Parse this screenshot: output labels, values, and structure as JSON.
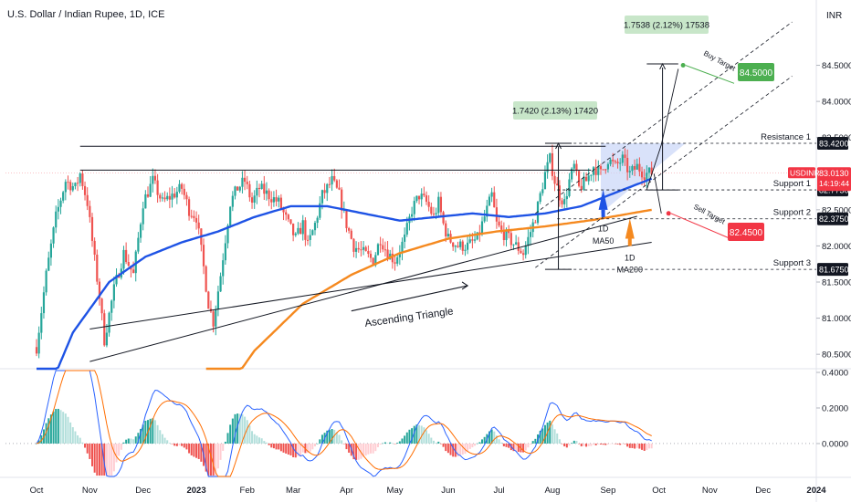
{
  "header": {
    "title": "U.S. Dollar / Indian Rupee, 1D, ICE",
    "currency": "INR"
  },
  "chart_data": {
    "type": "candlestick",
    "symbol": "USDINR",
    "current_price": "83.0130",
    "countdown": "14:19:44",
    "y_range": [
      80.3,
      85.05
    ],
    "y_ticks": [
      "84.5000",
      "84.0000",
      "83.5000",
      "82.5000",
      "82.0000",
      "81.5000",
      "81.0000",
      "80.5000"
    ],
    "x_ticks": [
      "Oct",
      "Nov",
      "Dec",
      "2023",
      "Feb",
      "Mar",
      "Apr",
      "May",
      "Jun",
      "Jul",
      "Aug",
      "Sep",
      "Oct",
      "Nov",
      "Dec",
      "2024"
    ],
    "x_tick_index": [
      0,
      22,
      44,
      66,
      87,
      106,
      128,
      148,
      170,
      191,
      213,
      236,
      257,
      278,
      300,
      322
    ],
    "candle_count": 255,
    "close_anchors": [
      [
        0,
        80.6
      ],
      [
        4,
        81.6
      ],
      [
        8,
        82.4
      ],
      [
        12,
        82.9
      ],
      [
        16,
        82.8
      ],
      [
        18,
        83.0
      ],
      [
        21,
        82.6
      ],
      [
        24,
        81.8
      ],
      [
        26,
        81.3
      ],
      [
        28,
        80.7
      ],
      [
        32,
        81.4
      ],
      [
        36,
        81.9
      ],
      [
        40,
        81.6
      ],
      [
        44,
        82.6
      ],
      [
        48,
        82.9
      ],
      [
        52,
        82.6
      ],
      [
        56,
        82.7
      ],
      [
        60,
        82.8
      ],
      [
        63,
        82.5
      ],
      [
        66,
        82.4
      ],
      [
        69,
        81.7
      ],
      [
        71,
        81.2
      ],
      [
        73,
        80.95
      ],
      [
        76,
        81.6
      ],
      [
        78,
        82.1
      ],
      [
        80,
        82.6
      ],
      [
        83,
        82.8
      ],
      [
        86,
        82.9
      ],
      [
        89,
        82.6
      ],
      [
        92,
        82.8
      ],
      [
        96,
        82.7
      ],
      [
        100,
        82.6
      ],
      [
        104,
        82.3
      ],
      [
        107,
        82.1
      ],
      [
        110,
        82.3
      ],
      [
        112,
        82.0
      ],
      [
        115,
        82.3
      ],
      [
        118,
        82.7
      ],
      [
        122,
        82.9
      ],
      [
        125,
        82.7
      ],
      [
        128,
        82.3
      ],
      [
        131,
        82.0
      ],
      [
        135,
        81.9
      ],
      [
        139,
        81.8
      ],
      [
        142,
        82.1
      ],
      [
        145,
        81.9
      ],
      [
        148,
        81.8
      ],
      [
        152,
        82.1
      ],
      [
        155,
        82.5
      ],
      [
        158,
        82.7
      ],
      [
        161,
        82.6
      ],
      [
        164,
        82.4
      ],
      [
        166,
        82.6
      ],
      [
        168,
        82.3
      ],
      [
        170,
        82.1
      ],
      [
        174,
        82.0
      ],
      [
        178,
        82.0
      ],
      [
        182,
        82.1
      ],
      [
        186,
        82.5
      ],
      [
        188,
        82.7
      ],
      [
        190,
        82.3
      ],
      [
        192,
        82.2
      ],
      [
        195,
        82.1
      ],
      [
        198,
        82.0
      ],
      [
        201,
        81.9
      ],
      [
        204,
        82.2
      ],
      [
        206,
        82.4
      ],
      [
        208,
        82.7
      ],
      [
        210,
        83.0
      ],
      [
        212,
        83.2
      ],
      [
        214,
        82.9
      ],
      [
        216,
        82.7
      ],
      [
        218,
        82.6
      ],
      [
        220,
        82.9
      ],
      [
        222,
        83.1
      ],
      [
        224,
        82.8
      ],
      [
        227,
        82.9
      ],
      [
        230,
        83.1
      ],
      [
        233,
        83.0
      ],
      [
        236,
        83.2
      ],
      [
        239,
        83.1
      ],
      [
        242,
        83.2
      ],
      [
        245,
        83.0
      ],
      [
        248,
        83.1
      ],
      [
        251,
        83.0
      ],
      [
        254,
        83.013
      ]
    ],
    "ma50": {
      "name": "1D MA50",
      "color": "#1e53e5",
      "anchors": [
        [
          0,
          79.6
        ],
        [
          15,
          80.8
        ],
        [
          30,
          81.5
        ],
        [
          45,
          81.85
        ],
        [
          60,
          82.05
        ],
        [
          75,
          82.2
        ],
        [
          90,
          82.4
        ],
        [
          105,
          82.55
        ],
        [
          120,
          82.55
        ],
        [
          135,
          82.45
        ],
        [
          150,
          82.35
        ],
        [
          165,
          82.4
        ],
        [
          180,
          82.45
        ],
        [
          195,
          82.4
        ],
        [
          210,
          82.45
        ],
        [
          225,
          82.55
        ],
        [
          240,
          82.75
        ],
        [
          254,
          82.93
        ]
      ]
    },
    "ma200": {
      "name": "1D MA200",
      "color": "#f5891f",
      "anchors": [
        [
          70,
          79.6
        ],
        [
          90,
          80.55
        ],
        [
          110,
          81.2
        ],
        [
          130,
          81.6
        ],
        [
          150,
          81.9
        ],
        [
          170,
          82.1
        ],
        [
          190,
          82.2
        ],
        [
          210,
          82.27
        ],
        [
          230,
          82.36
        ],
        [
          254,
          82.5
        ]
      ]
    },
    "levels": [
      {
        "name": "Resistance 1",
        "value": "83.4200",
        "color": "#131722"
      },
      {
        "name": "Support 1",
        "value": "82.7750",
        "color": "#131722"
      },
      {
        "name": "Support 2",
        "value": "82.3750",
        "color": "#131722"
      },
      {
        "name": "Support 3",
        "value": "81.6750",
        "color": "#131722"
      }
    ],
    "target_buy": {
      "label": "Buy Target",
      "value": "84.5000",
      "color": "#4caf50"
    },
    "target_sell": {
      "label": "Sell Target",
      "value": "82.4500",
      "color": "#f23645"
    },
    "measure_boxes": [
      "1.7420 (2.13%) 17420",
      "1.7538 (2.12%) 17538"
    ],
    "annotation_triangle": "Ascending Triangle",
    "macd": {
      "y_ticks": [
        "0.4000",
        "0.2000",
        "0.0000"
      ],
      "y_range": [
        -0.19,
        0.4
      ]
    }
  }
}
